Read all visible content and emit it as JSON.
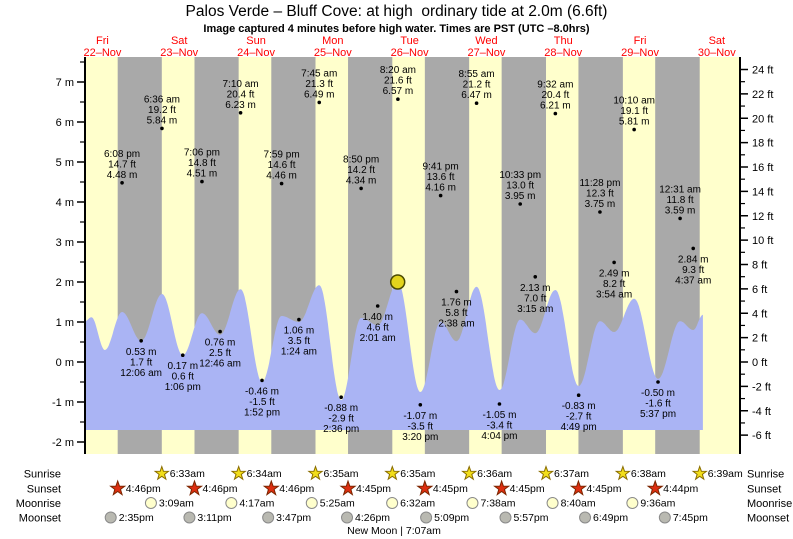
{
  "title": "Palos Verde – Bluff Cove: at high  ordinary tide at 2.0m (6.6ft)",
  "subtitle": "Image captured 4 minutes before high water. Times are PST (UTC –8.0hrs)",
  "colors": {
    "background": "#ffffff",
    "daylight_band": "#ffffcc",
    "night_band": "#a9a9a9",
    "tide_fill": "#aab4f4",
    "axis": "#000000",
    "day_label": "#ff0000",
    "annotation_text": "#000000",
    "current_marker_fill": "#e3d41c",
    "current_marker_stroke": "#4a4a00",
    "sunrise_star_fill": "#f2de1a",
    "sunrise_star_stroke": "#8a6d00",
    "sunset_star_fill": "#dd2e10",
    "sunset_star_stroke": "#7a2600",
    "moonrise_circle_fill": "#ffffcc",
    "moonrise_circle_stroke": "#8a8a8a",
    "moonset_circle_fill": "#b9b9b1",
    "moonset_circle_stroke": "#8a8a8a"
  },
  "chart_data": {
    "type": "area",
    "title": "Palos Verde – Bluff Cove: at high  ordinary tide at 2.0m (6.6ft)",
    "subtitle": "Image captured 4 minutes before high water. Times are PST (UTC –8.0hrs)",
    "x_days": [
      {
        "weekday": "Fri",
        "date": "22–Nov"
      },
      {
        "weekday": "Sat",
        "date": "23–Nov"
      },
      {
        "weekday": "Sun",
        "date": "24–Nov"
      },
      {
        "weekday": "Mon",
        "date": "25–Nov"
      },
      {
        "weekday": "Tue",
        "date": "26–Nov"
      },
      {
        "weekday": "Wed",
        "date": "27–Nov"
      },
      {
        "weekday": "Thu",
        "date": "28–Nov"
      },
      {
        "weekday": "Fri",
        "date": "29–Nov"
      },
      {
        "weekday": "Sat",
        "date": "30–Nov"
      }
    ],
    "ylabel_left": "meters",
    "ylabel_right": "feet",
    "ylim_m": [
      -2.4,
      7.625
    ],
    "axis_left_m": [
      7,
      6,
      5,
      4,
      3,
      2,
      1,
      0,
      -1,
      -2
    ],
    "axis_left_unit": "m",
    "axis_right_ft": [
      24,
      22,
      20,
      18,
      16,
      14,
      12,
      10,
      8,
      6,
      4,
      2,
      0,
      -2,
      -4,
      -6
    ],
    "axis_right_unit": "ft",
    "grid": false,
    "annotations": {
      "morning_high_tides": [
        {
          "day": 1,
          "time": "6:36 am",
          "ft": "19.2 ft",
          "m": "5.84 m"
        },
        {
          "day": 2,
          "time": "7:10 am",
          "ft": "20.4 ft",
          "m": "6.23 m"
        },
        {
          "day": 3,
          "time": "7:45 am",
          "ft": "21.3 ft",
          "m": "6.49 m"
        },
        {
          "day": 4,
          "time": "8:20 am",
          "ft": "21.6 ft",
          "m": "6.57 m"
        },
        {
          "day": 5,
          "time": "8:55 am",
          "ft": "21.2 ft",
          "m": "6.47 m"
        },
        {
          "day": 6,
          "time": "9:32 am",
          "ft": "20.4 ft",
          "m": "6.21 m"
        },
        {
          "day": 7,
          "time": "10:10 am",
          "ft": "19.1 ft",
          "m": "5.81 m"
        }
      ],
      "evening_high_tides": [
        {
          "day": 0,
          "time": "6:08 pm",
          "ft": "14.7 ft",
          "m": "4.48 m"
        },
        {
          "day": 1,
          "time": "7:06 pm",
          "ft": "14.8 ft",
          "m": "4.51 m"
        },
        {
          "day": 2,
          "time": "7:59 pm",
          "ft": "14.6 ft",
          "m": "4.46 m"
        },
        {
          "day": 3,
          "time": "8:50 pm",
          "ft": "14.2 ft",
          "m": "4.34 m"
        },
        {
          "day": 4,
          "time": "9:41 pm",
          "ft": "13.6 ft",
          "m": "4.16 m"
        },
        {
          "day": 5,
          "time": "10:33 pm",
          "ft": "13.0 ft",
          "m": "3.95 m"
        },
        {
          "day": 6,
          "time": "11:28 pm",
          "ft": "12.3 ft",
          "m": "3.75 m"
        },
        {
          "day": 8,
          "time": "12:31 am",
          "ft": "11.8 ft",
          "m": "3.59 m"
        }
      ],
      "overnight_tides": [
        {
          "day": 1,
          "m": "0.53 m",
          "ft": "1.7 ft",
          "time": "12:06 am"
        },
        {
          "day": 2,
          "m": "0.76 m",
          "ft": "2.5 ft",
          "time": "12:46 am"
        },
        {
          "day": 3,
          "m": "1.06 m",
          "ft": "3.5 ft",
          "time": "1:24 am"
        },
        {
          "day": 4,
          "m": "1.40 m",
          "ft": "4.6 ft",
          "time": "2:01 am"
        },
        {
          "day": 5,
          "m": "1.76 m",
          "ft": "5.8 ft",
          "time": "2:38 am"
        },
        {
          "day": 6,
          "m": "2.13 m",
          "ft": "7.0 ft",
          "time": "3:15 am"
        },
        {
          "day": 7,
          "m": "2.49 m",
          "ft": "8.2 ft",
          "time": "3:54 am"
        },
        {
          "day": 8,
          "m": "2.84 m",
          "ft": "9.3 ft",
          "time": "4:37 am"
        }
      ],
      "afternoon_low_tides": [
        {
          "day": 1,
          "m": "0.17 m",
          "ft": "0.6 ft",
          "time": "1:06 pm"
        },
        {
          "day": 2,
          "m": "-0.46 m",
          "ft": "-1.5 ft",
          "time": "1:52 pm"
        },
        {
          "day": 3,
          "m": "-0.88 m",
          "ft": "-2.9 ft",
          "time": "2:36 pm"
        },
        {
          "day": 4,
          "m": "-1.07 m",
          "ft": "-3.5 ft",
          "time": "3:20 pm"
        },
        {
          "day": 5,
          "m": "-1.05 m",
          "ft": "-3.4 ft",
          "time": "4:04 pm"
        },
        {
          "day": 6,
          "m": "-0.83 m",
          "ft": "-2.7 ft",
          "time": "4:49 pm"
        },
        {
          "day": 7,
          "m": "-0.50 m",
          "ft": "-1.6 ft",
          "time": "5:37 pm"
        }
      ]
    },
    "current_marker": {
      "day": 4,
      "time": "8:16am",
      "height_m": 2.0
    },
    "curve": {
      "start_clock_hours": 6.55,
      "fill_bottom_m": -1.7,
      "extremes_t_hours_vs_m": [
        [
          0,
          1.02
        ],
        [
          2.0,
          1.12
        ],
        [
          6.2,
          0.3
        ],
        [
          11.58,
          1.25
        ],
        [
          17.55,
          0.53
        ],
        [
          24.05,
          1.7
        ],
        [
          30.55,
          0.17
        ],
        [
          36.55,
          1.22
        ],
        [
          42.22,
          0.68
        ],
        [
          48.62,
          1.82
        ],
        [
          55.32,
          -0.5
        ],
        [
          61.43,
          1.15
        ],
        [
          66.85,
          1.0
        ],
        [
          73.2,
          1.92
        ],
        [
          80.05,
          -0.95
        ],
        [
          86.28,
          1.1
        ],
        [
          91.47,
          0.92
        ],
        [
          97.78,
          2.0
        ],
        [
          104.78,
          -0.75
        ],
        [
          111.13,
          1.0
        ],
        [
          116.08,
          0.52
        ],
        [
          122.37,
          1.88
        ],
        [
          129.52,
          -0.7
        ],
        [
          136.0,
          1.06
        ],
        [
          140.7,
          0.72
        ],
        [
          146.98,
          1.8
        ],
        [
          154.27,
          -0.6
        ],
        [
          160.92,
          1.02
        ],
        [
          165.35,
          0.75
        ],
        [
          171.62,
          1.58
        ],
        [
          179.07,
          -0.42
        ],
        [
          185.97,
          1.02
        ],
        [
          190.07,
          0.8
        ],
        [
          193.1,
          1.18
        ]
      ]
    }
  },
  "astro": {
    "rows": [
      {
        "label": "Sunrise",
        "icon": "sunrise-star",
        "first_day": 1,
        "times": [
          "6:33am",
          "6:34am",
          "6:35am",
          "6:35am",
          "6:36am",
          "6:37am",
          "6:38am",
          "6:39am"
        ]
      },
      {
        "label": "Sunset",
        "icon": "sunset-star",
        "first_day": 0,
        "times": [
          "4:46pm",
          "4:46pm",
          "4:46pm",
          "4:45pm",
          "4:45pm",
          "4:45pm",
          "4:45pm",
          "4:44pm"
        ]
      },
      {
        "label": "Moonrise",
        "icon": "moonrise-circle",
        "first_day": 1,
        "times": [
          "3:09am",
          "4:17am",
          "5:25am",
          "6:32am",
          "7:38am",
          "8:40am",
          "9:36am"
        ]
      },
      {
        "label": "Moonset",
        "icon": "moonset-circle",
        "first_day": 0,
        "times": [
          "2:35pm",
          "3:11pm",
          "3:47pm",
          "4:26pm",
          "5:09pm",
          "5:57pm",
          "6:49pm",
          "7:45pm"
        ]
      }
    ],
    "moon_phase": {
      "day": 4,
      "time": "7:07am",
      "label": "New Moon | 7:07am"
    }
  }
}
